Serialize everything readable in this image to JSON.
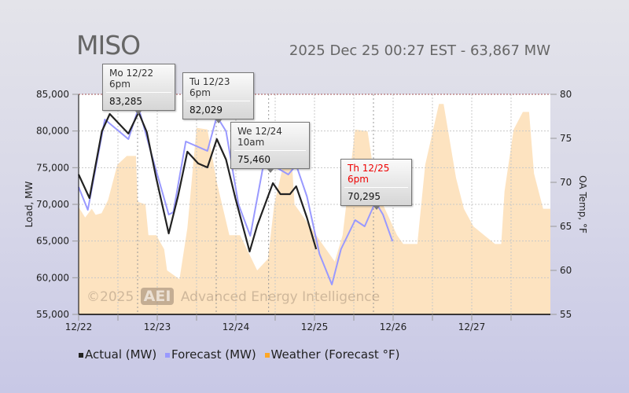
{
  "header": {
    "title": "MISO",
    "status": "2025 Dec 25 00:27 EST - 63,867 MW"
  },
  "watermark": {
    "copyright": "©2025",
    "logo": "AEI",
    "company": "Advanced Energy Intelligence"
  },
  "tooltips": [
    {
      "label": "Mo 12/22 6pm",
      "value": "83,285",
      "hour": 18,
      "highlight": false
    },
    {
      "label": "Tu 12/23 6pm",
      "value": "82,029",
      "hour": 42,
      "highlight": false
    },
    {
      "label": "We 12/24 10am",
      "value": "75,460",
      "hour": 58,
      "highlight": false
    },
    {
      "label": "Th 12/25 6pm",
      "value": "70,295",
      "hour": 90,
      "highlight": true
    }
  ],
  "legend": [
    {
      "label": "Actual (MW)",
      "color": "#222222"
    },
    {
      "label": "Forecast (MW)",
      "color": "#9999ff"
    },
    {
      "label": "Weather (Forecast °F)",
      "color": "#ffa726"
    }
  ],
  "chart_data": {
    "type": "line",
    "title": "MISO",
    "xlabel": "",
    "ylabel": "Load, MW",
    "y2label": "OA Temp, °F",
    "x_unit": "hours since 12/22 00:00",
    "xlim": [
      0,
      144
    ],
    "ylim": [
      55000,
      85000
    ],
    "y2lim": [
      55,
      80
    ],
    "x_ticks": [
      {
        "h": 0,
        "label": "12/22"
      },
      {
        "h": 24,
        "label": "12/23"
      },
      {
        "h": 48,
        "label": "12/24"
      },
      {
        "h": 72,
        "label": "12/25"
      },
      {
        "h": 96,
        "label": "12/26"
      },
      {
        "h": 120,
        "label": "12/27"
      }
    ],
    "y_ticks": [
      "55,000",
      "60,000",
      "65,000",
      "70,000",
      "75,000",
      "80,000",
      "85,000"
    ],
    "y_tick_values": [
      55000,
      60000,
      65000,
      70000,
      75000,
      80000,
      85000
    ],
    "y2_ticks": [
      "55",
      "60",
      "65",
      "70",
      "75",
      "80"
    ],
    "y2_tick_values": [
      55,
      60,
      65,
      70,
      75,
      80
    ],
    "grid": true,
    "legend_position": "bottom",
    "series": [
      {
        "name": "Weather (Forecast °F)",
        "axis": "right",
        "kind": "area",
        "color": "#fde3c0",
        "x": [
          0,
          2,
          4,
          5.2,
          7,
          9,
          11.8,
          14.7,
          17.5,
          18,
          20.4,
          21.3,
          23.7,
          26.1,
          27,
          30.8,
          33.2,
          36,
          39.3,
          42.2,
          46,
          49.3,
          54.5,
          57.8,
          59.7,
          63.1,
          65,
          65.9,
          72.5,
          76.3,
          78.2,
          80.6,
          84.4,
          88.2,
          91,
          97.2,
          99.1,
          103.4,
          105.8,
          110,
          111.4,
          115.2,
          117.6,
          120.5,
          123.8,
          127.1,
          129,
          130,
          132.8,
          135.6,
          137.5,
          139,
          141.8,
          144
        ],
        "values": [
          67.2,
          66,
          67,
          66.3,
          66.5,
          68,
          72,
          73,
          73,
          67.8,
          67.5,
          64,
          64,
          62.4,
          60,
          59,
          64.8,
          76.2,
          76,
          70,
          64,
          64,
          60,
          61.3,
          67.5,
          73,
          73,
          67.5,
          64,
          62,
          61,
          64,
          76,
          75.8,
          69,
          64,
          63,
          63,
          72,
          78.9,
          78.9,
          70.5,
          67,
          65,
          64,
          63,
          63,
          69,
          76,
          78,
          78,
          71,
          67,
          67
        ]
      },
      {
        "name": "Forecast (MW)",
        "axis": "left",
        "color": "#9999ff",
        "x": [
          0,
          2.8,
          8.0,
          15.2,
          18.3,
          22.3,
          27.5,
          28.9,
          32.7,
          39.3,
          42.2,
          45.0,
          48.8,
          52.4,
          56.4,
          58.3,
          64.0,
          66.4,
          69.7,
          73.5,
          77.3,
          80.1,
          84.4,
          87.3,
          90.6,
          92.9,
          95.8
        ],
        "values": [
          72360,
          69250,
          81570,
          78890,
          83180,
          76750,
          68610,
          68930,
          78570,
          77290,
          82000,
          79960,
          70000,
          65710,
          75360,
          75570,
          74070,
          75360,
          71070,
          63250,
          59070,
          63890,
          67860,
          67000,
          70320,
          68610,
          64960
        ]
      },
      {
        "name": "Actual (MW)",
        "axis": "left",
        "color": "#222222",
        "x": [
          0,
          3.3,
          7.1,
          9.5,
          15.2,
          18.3,
          20.8,
          23.7,
          27.5,
          30.3,
          33.2,
          36.5,
          39.3,
          42.2,
          45.0,
          47.9,
          52.2,
          54.5,
          59.3,
          61.6,
          64.5,
          66.4,
          69.7,
          72.5
        ],
        "values": [
          74071,
          70860,
          79960,
          82320,
          79640,
          82540,
          79860,
          73540,
          66040,
          71070,
          77180,
          75570,
          75040,
          78890,
          76110,
          70750,
          63570,
          67110,
          72890,
          71390,
          71390,
          72460,
          68180,
          63890
        ]
      }
    ]
  }
}
